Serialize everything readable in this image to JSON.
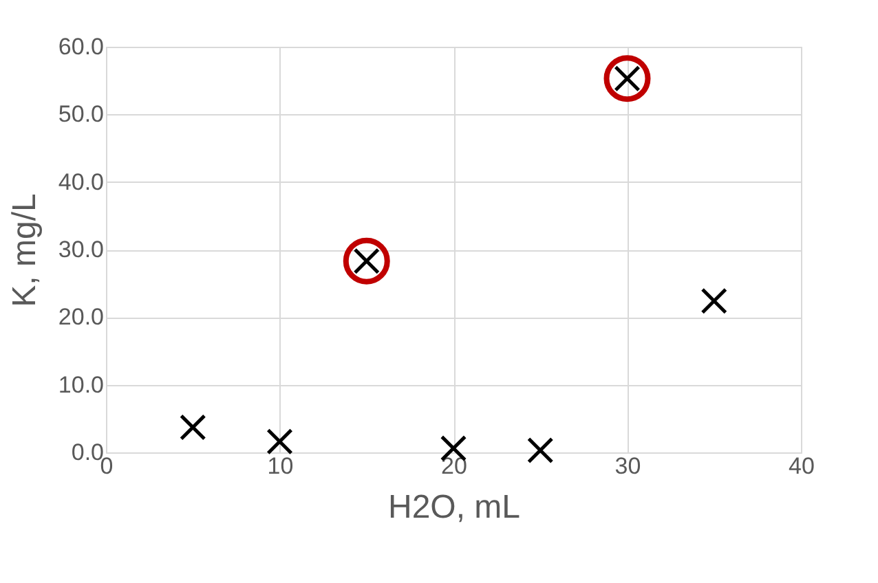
{
  "chart_data": {
    "type": "scatter",
    "xlabel": "H2O, mL",
    "ylabel": "K, mg/L",
    "xlim": [
      0,
      40
    ],
    "xticks": [
      0,
      10,
      20,
      30,
      40
    ],
    "ylim": [
      0,
      60
    ],
    "yticks": [
      {
        "value": 0,
        "label": "0.0"
      },
      {
        "value": 10,
        "label": "10.0"
      },
      {
        "value": 20,
        "label": "20.0"
      },
      {
        "value": 30,
        "label": "30.0"
      },
      {
        "value": 40,
        "label": "40.0"
      },
      {
        "value": 50,
        "label": "50.0"
      },
      {
        "value": 60,
        "label": "60.0"
      }
    ],
    "grid": true,
    "series": [
      {
        "color": "#000000",
        "marker": "cross",
        "x": [
          5,
          10,
          15,
          20,
          25,
          30,
          35
        ],
        "values": [
          3.7,
          1.6,
          28.3,
          0.6,
          0.3,
          55.3,
          22.4
        ]
      },
      {
        "color": "#c00000",
        "marker": "circle",
        "x": [
          15,
          30
        ],
        "values": [
          28.3,
          55.3
        ]
      }
    ]
  }
}
